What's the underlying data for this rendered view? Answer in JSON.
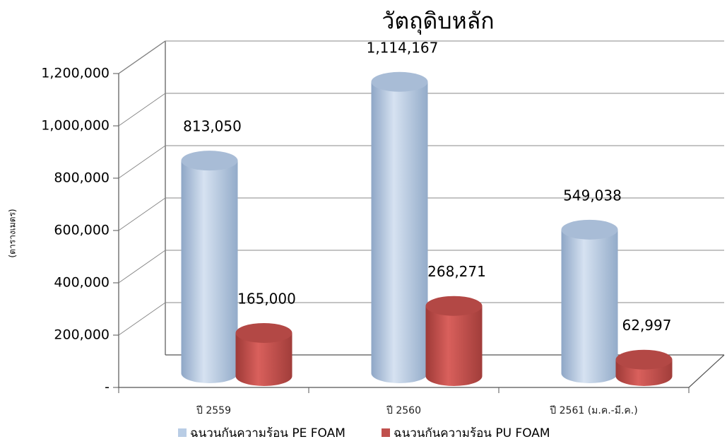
{
  "chart_data": {
    "type": "bar3d",
    "title": "วัตถุดิบหลัก",
    "y_label": "(ตารางเมตร)",
    "categories": [
      "ปี 2559",
      "ปี 2560",
      "ปี 2561 (ม.ค.-มี.ค.)"
    ],
    "series": [
      {
        "name": "ฉนวนกันความร้อน PE FOAM",
        "color": "#b9cde5",
        "values": [
          813050,
          1114167,
          549038
        ],
        "value_labels": [
          "813,050",
          "1,114,167",
          "549,038"
        ]
      },
      {
        "name": "ฉนวนกันความร้อน PU  FOAM",
        "color": "#c0504d",
        "values": [
          165000,
          268271,
          62997
        ],
        "value_labels": [
          "165,000",
          "268,271",
          "62,997"
        ]
      }
    ],
    "ylim": [
      0,
      1200000
    ],
    "yticks": [
      {
        "value": 0,
        "label": "-"
      },
      {
        "value": 200000,
        "label": "200,000"
      },
      {
        "value": 400000,
        "label": "400,000"
      },
      {
        "value": 600000,
        "label": "600,000"
      },
      {
        "value": 800000,
        "label": "800,000"
      },
      {
        "value": 1000000,
        "label": "1,000,000"
      },
      {
        "value": 1200000,
        "label": "1,200,000"
      }
    ],
    "grid": true,
    "legend": "bottom"
  }
}
